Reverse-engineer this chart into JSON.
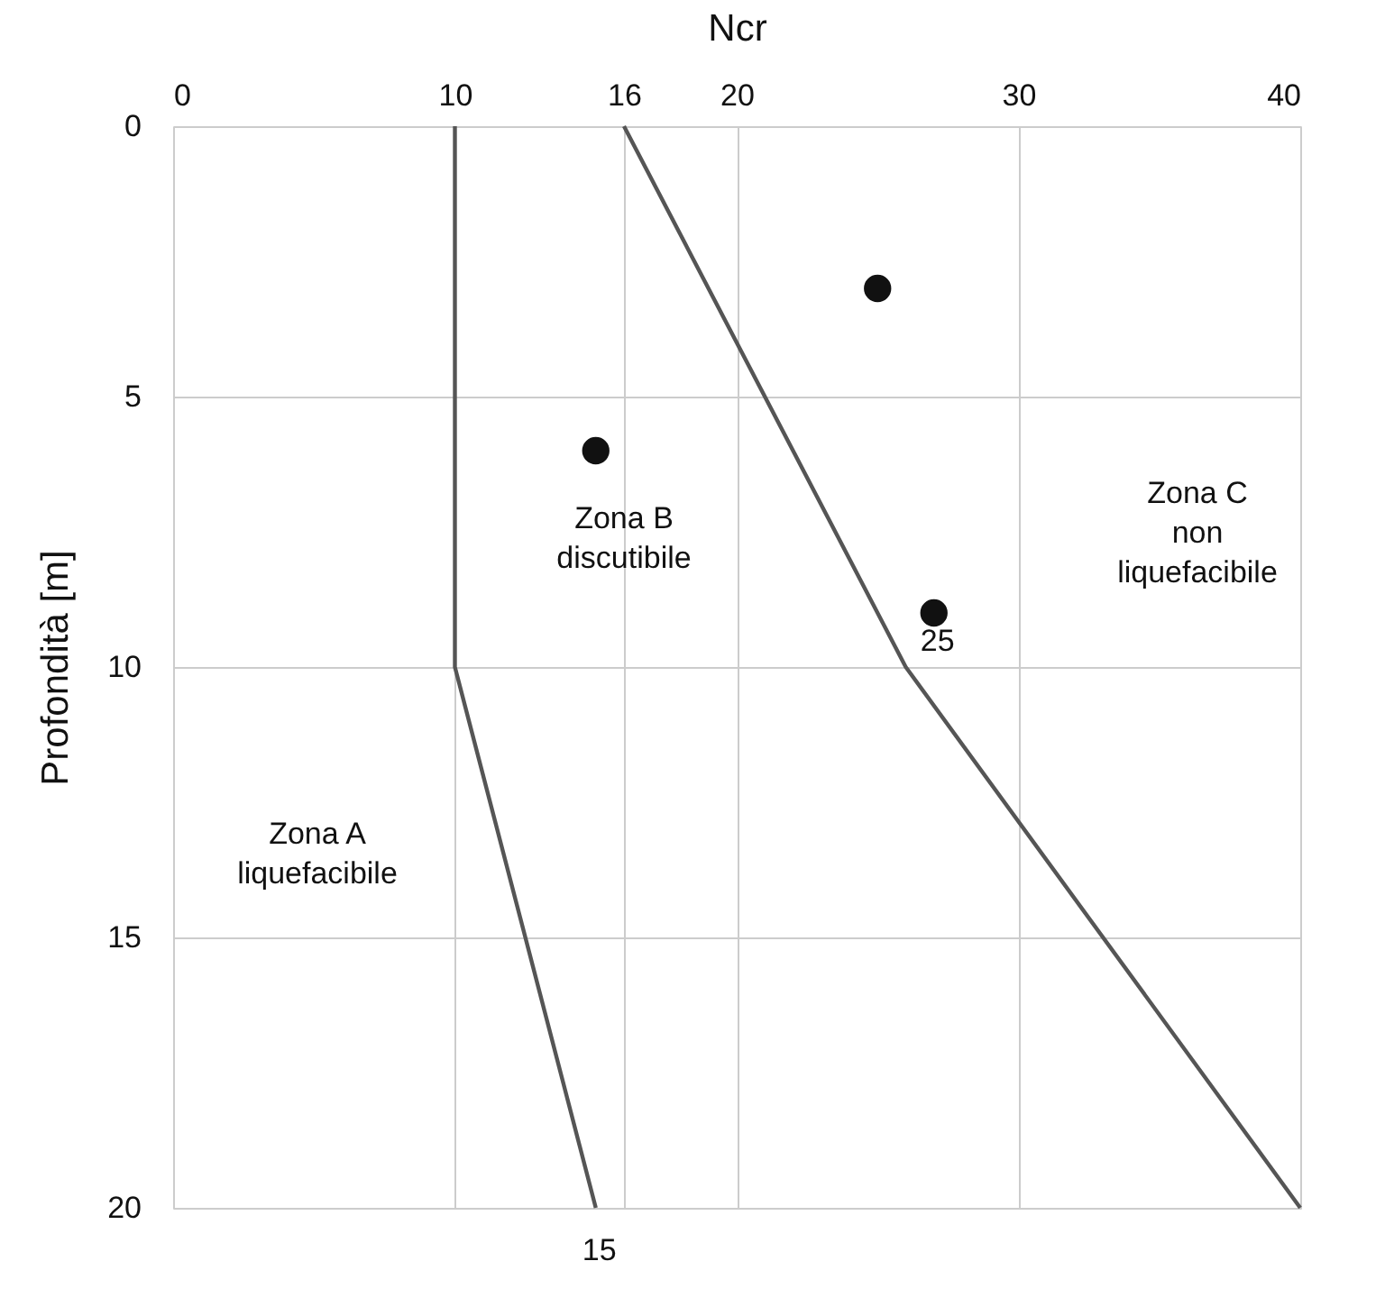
{
  "chart_data": {
    "type": "line",
    "xlabel": "Ncr",
    "ylabel": "Profondità  [m]",
    "xlim": [
      0,
      40
    ],
    "xticks": [
      0,
      10,
      16,
      20,
      30,
      40
    ],
    "ylim": [
      20,
      0
    ],
    "yticks": [
      0,
      5,
      10,
      15,
      20
    ],
    "grid": true,
    "legend": false,
    "series": [
      {
        "color": "#555555",
        "x": [
          10,
          10,
          15
        ],
        "values": [
          0,
          10,
          20
        ]
      },
      {
        "color": "#555555",
        "x": [
          16,
          26,
          40
        ],
        "values": [
          0,
          10,
          20
        ]
      },
      {
        "type": "scatter",
        "color": "#111111",
        "marker": "circle",
        "x": [
          25,
          15,
          27
        ],
        "values": [
          3,
          6,
          9
        ]
      }
    ],
    "annotations": [
      {
        "text": "15",
        "x": 15,
        "y": 20
      },
      {
        "text": "25",
        "x": 27,
        "y": 9
      },
      "Zona A\nliquefacibile",
      "Zona B\ndiscutibile",
      "Zona C\nnon\nliquefacibile"
    ]
  }
}
